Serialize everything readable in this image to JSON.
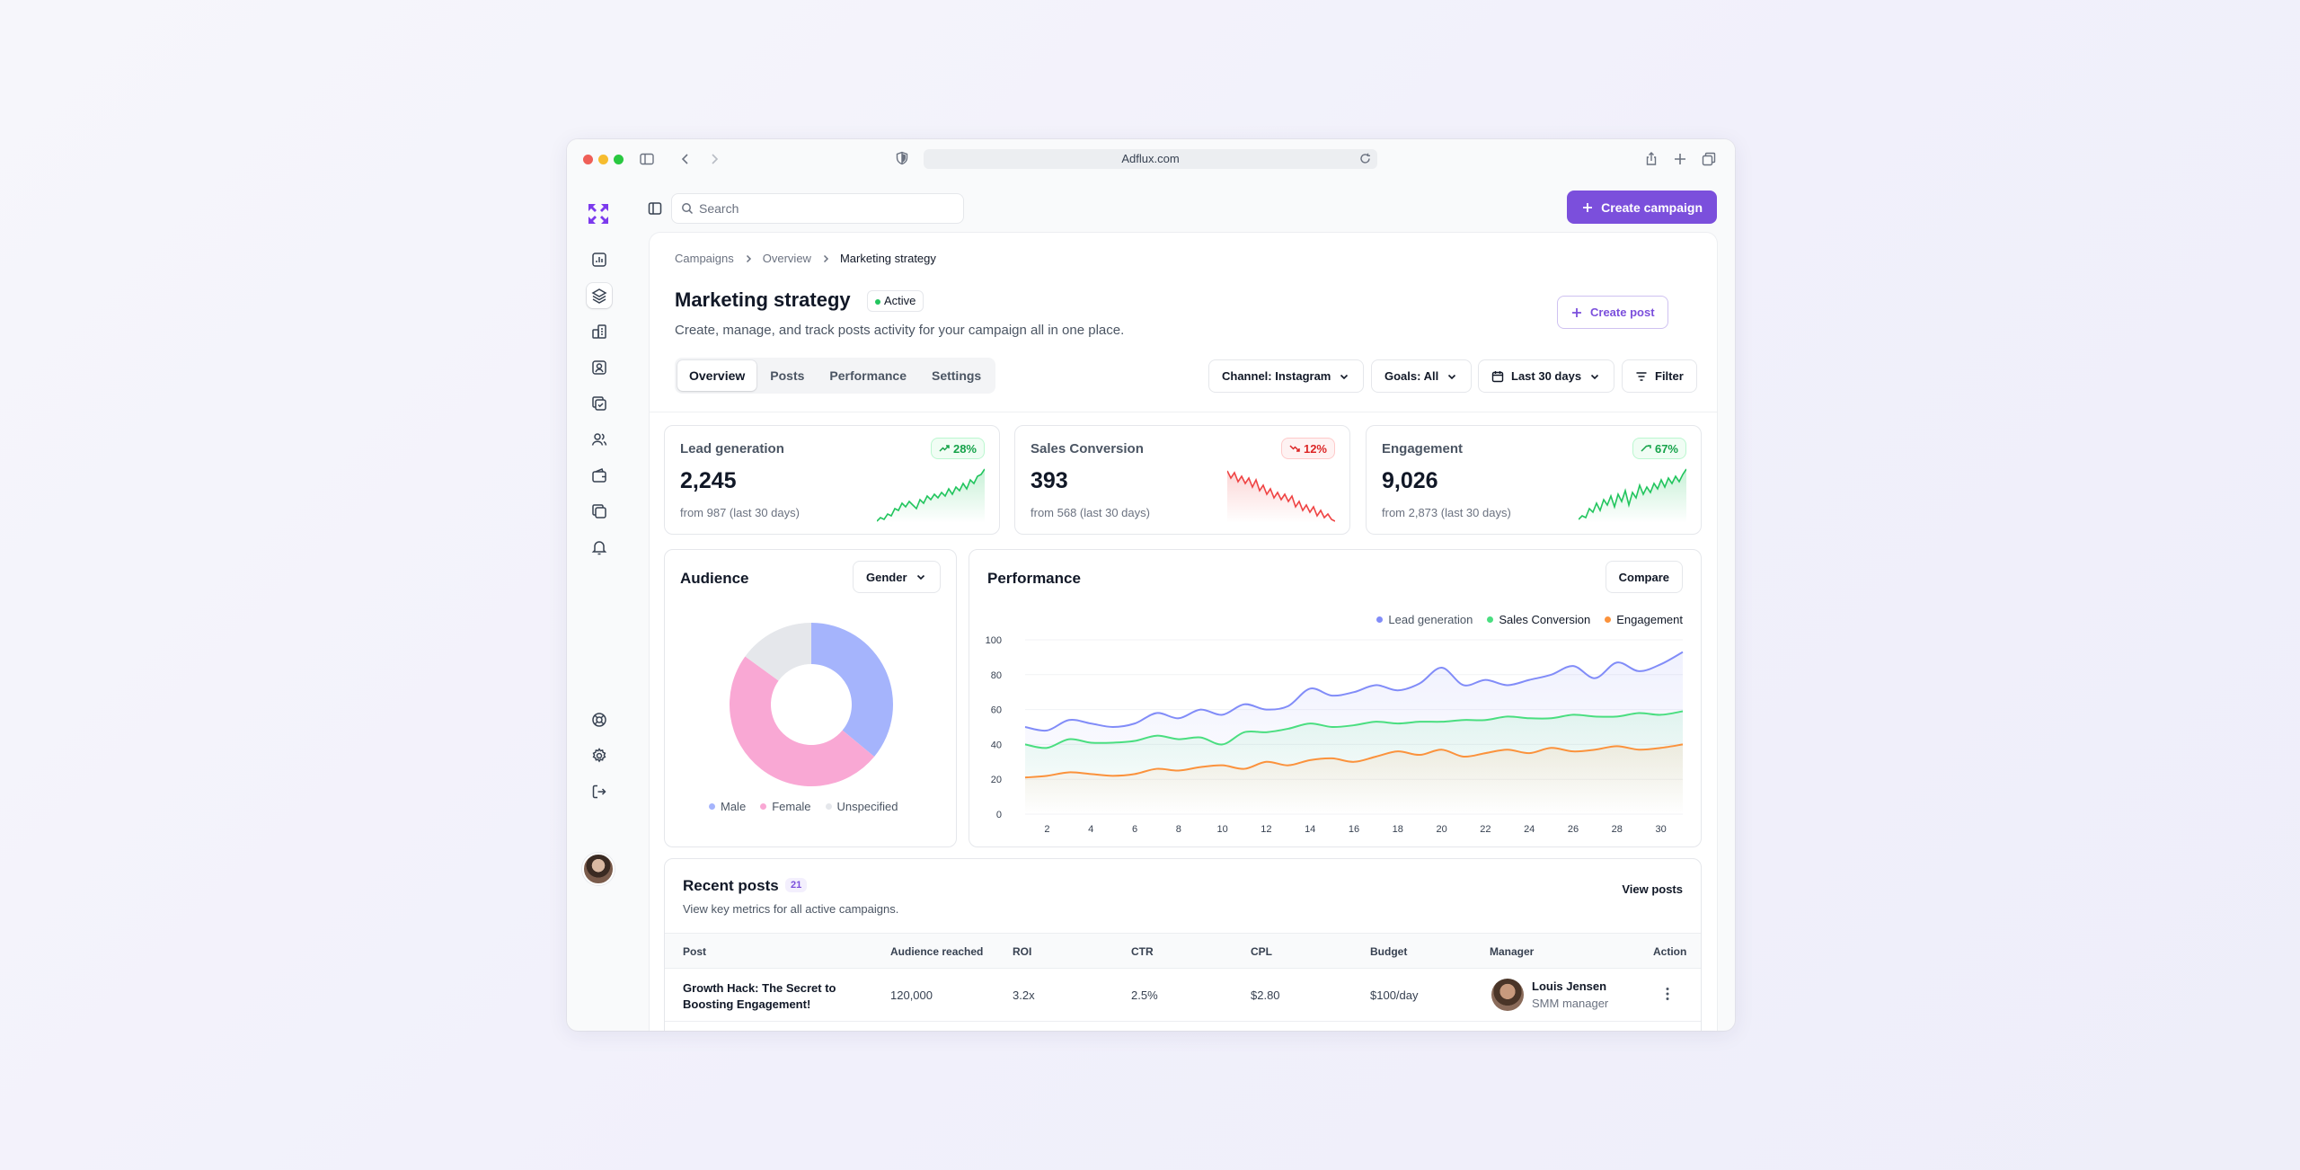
{
  "browser": {
    "url": "Adflux.com"
  },
  "search": {
    "placeholder": "Search"
  },
  "topbar": {
    "create_campaign": "Create campaign"
  },
  "breadcrumb": [
    "Campaigns",
    "Overview",
    "Marketing strategy"
  ],
  "page": {
    "title": "Marketing strategy",
    "status": "Active",
    "subtitle": "Create, manage, and track posts activity for your campaign all in one place.",
    "create_post": "Create post"
  },
  "tabs": [
    "Overview",
    "Posts",
    "Performance",
    "Settings"
  ],
  "filters": {
    "channel": "Channel: Instagram",
    "goals": "Goals: All",
    "range": "Last 30 days",
    "filter": "Filter"
  },
  "kpis": [
    {
      "name": "Lead generation",
      "value": "2,245",
      "from": "from 987 (last 30 days)",
      "change": "28%",
      "trend": "up"
    },
    {
      "name": "Sales Conversion",
      "value": "393",
      "from": "from 568 (last 30 days)",
      "change": "12%",
      "trend": "down"
    },
    {
      "name": "Engagement",
      "value": "9,026",
      "from": "from 2,873 (last 30 days)",
      "change": "67%",
      "trend": "up"
    }
  ],
  "audience": {
    "title": "Audience",
    "selector": "Gender",
    "legend": [
      "Male",
      "Female",
      "Unspecified"
    ]
  },
  "chart_data": [
    {
      "type": "pie",
      "categories": [
        "Male",
        "Female",
        "Unspecified"
      ],
      "values": [
        36,
        49,
        15
      ],
      "colors": [
        "#a5b4fc",
        "#f9a8d4",
        "#e5e7eb"
      ]
    },
    {
      "type": "line",
      "title": "Performance",
      "x": [
        1,
        2,
        3,
        4,
        5,
        6,
        7,
        8,
        9,
        10,
        11,
        12,
        13,
        14,
        15,
        16,
        17,
        18,
        19,
        20,
        21,
        22,
        23,
        24,
        25,
        26,
        27,
        28,
        29,
        30,
        31
      ],
      "xticks": [
        2,
        4,
        6,
        8,
        10,
        12,
        14,
        16,
        18,
        20,
        22,
        24,
        26,
        28,
        30
      ],
      "ylim": [
        0,
        100
      ],
      "yticks": [
        0,
        20,
        40,
        60,
        80,
        100
      ],
      "legend_position": "top-right",
      "series": [
        {
          "name": "Lead generation",
          "color": "#818cf8",
          "values": [
            50,
            48,
            54,
            52,
            50,
            52,
            58,
            55,
            60,
            57,
            63,
            60,
            62,
            72,
            68,
            70,
            74,
            71,
            75,
            84,
            74,
            77,
            74,
            77,
            80,
            85,
            78,
            87,
            82,
            86,
            93
          ]
        },
        {
          "name": "Sales Conversion",
          "color": "#4ade80",
          "values": [
            40,
            38,
            43,
            41,
            41,
            42,
            45,
            43,
            44,
            40,
            47,
            47,
            49,
            52,
            50,
            51,
            53,
            52,
            53,
            53,
            54,
            54,
            56,
            55,
            55,
            57,
            56,
            56,
            58,
            57,
            59
          ]
        },
        {
          "name": "Engagement",
          "color": "#fb923c",
          "values": [
            21,
            22,
            24,
            23,
            22,
            23,
            26,
            25,
            27,
            28,
            26,
            30,
            28,
            31,
            32,
            30,
            33,
            36,
            34,
            37,
            33,
            35,
            37,
            35,
            38,
            36,
            37,
            39,
            37,
            38,
            40
          ]
        }
      ]
    }
  ],
  "performance": {
    "title": "Performance",
    "compare": "Compare"
  },
  "posts": {
    "title": "Recent posts",
    "count": "21",
    "subtitle": "View key metrics for all active campaigns.",
    "view_all": "View posts",
    "columns": [
      "Post",
      "Audience reached",
      "ROI",
      "CTR",
      "CPL",
      "Budget",
      "Manager",
      "Action"
    ],
    "rows": [
      {
        "post_line1": "Growth Hack: The Secret to",
        "post_line2": "Boosting Engagement!",
        "audience": "120,000",
        "roi": "3.2x",
        "ctr": "2.5%",
        "cpl": "$2.80",
        "budget": "$100/day",
        "manager": "Louis Jensen",
        "role": "SMM manager"
      }
    ]
  },
  "colors": {
    "accent": "#7b4fdc",
    "up": "#16a34a",
    "down": "#dc2626"
  }
}
